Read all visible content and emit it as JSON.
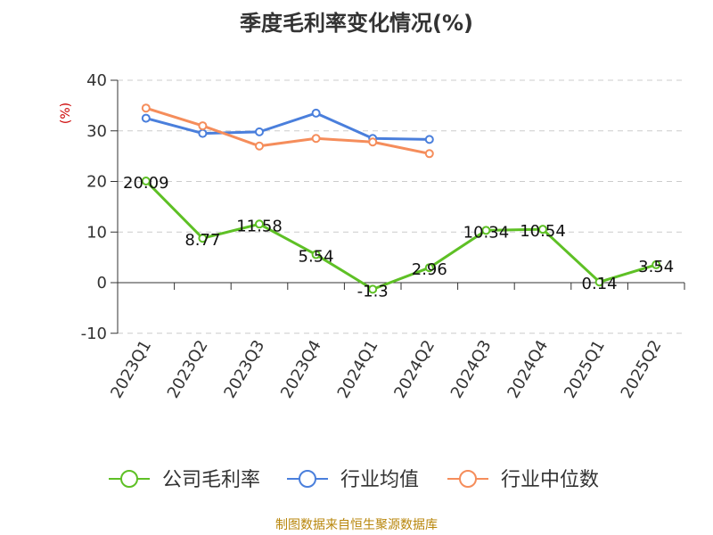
{
  "chart_data": {
    "type": "line",
    "title": "季度毛利率变化情况(%)",
    "ylabel": "(%)",
    "xlabel": "",
    "categories": [
      "2023Q1",
      "2023Q2",
      "2023Q3",
      "2023Q4",
      "2024Q1",
      "2024Q2",
      "2024Q3",
      "2024Q4",
      "2025Q1",
      "2025Q2"
    ],
    "ylim": [
      -10,
      40
    ],
    "yticks": [
      -10,
      0,
      10,
      20,
      30,
      40
    ],
    "grid": true,
    "legend_position": "bottom",
    "series": [
      {
        "name": "公司毛利率",
        "color": "#5ec025",
        "show_labels": true,
        "values": [
          20.09,
          8.77,
          11.58,
          5.54,
          -1.3,
          2.96,
          10.34,
          10.54,
          0.14,
          3.54
        ],
        "labels": [
          "20.09",
          "8.77",
          "11.58",
          "5.54",
          "-1.3",
          "2.96",
          "10.34",
          "10.54",
          "0.14",
          "3.54"
        ]
      },
      {
        "name": "行业均值",
        "color": "#4a7fdc",
        "show_labels": false,
        "values": [
          32.5,
          29.5,
          29.8,
          33.5,
          28.5,
          28.3,
          null,
          null,
          null,
          null
        ]
      },
      {
        "name": "行业中位数",
        "color": "#f58d5b",
        "show_labels": false,
        "values": [
          34.5,
          31.0,
          27.0,
          28.5,
          27.8,
          25.5,
          null,
          null,
          null,
          null
        ]
      }
    ]
  },
  "footer": {
    "source": "制图数据来自恒生聚源数据库"
  }
}
